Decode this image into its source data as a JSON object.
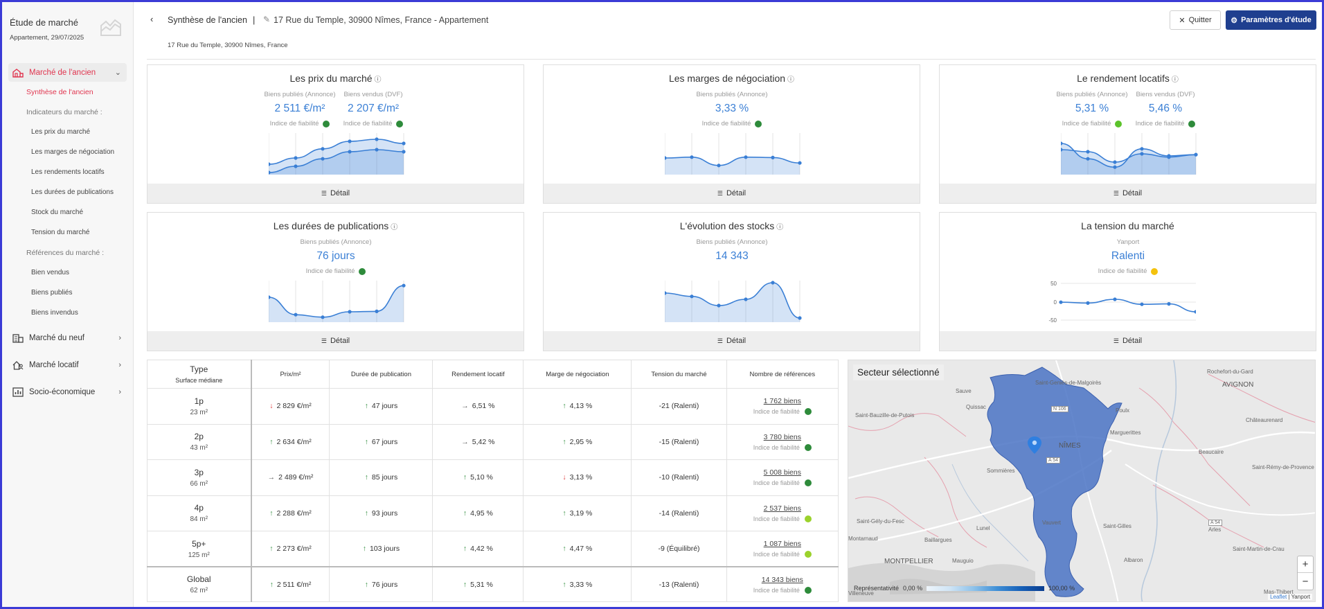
{
  "sidebar": {
    "title": "Étude de marché",
    "subtitle": "Appartement, 29/07/2025",
    "sections": [
      {
        "label": "Marché de l'ancien",
        "icon": "building-old-icon",
        "items": [
          {
            "label": "Synthèse de l'ancien",
            "level": 1,
            "current": true
          },
          {
            "label": "Indicateurs du marché :",
            "level": 1,
            "group": true
          },
          {
            "label": "Les prix du marché",
            "level": 2
          },
          {
            "label": "Les marges de négociation",
            "level": 2
          },
          {
            "label": "Les rendements locatifs",
            "level": 2
          },
          {
            "label": "Les durées de publications",
            "level": 2
          },
          {
            "label": "Stock du marché",
            "level": 2
          },
          {
            "label": "Tension du marché",
            "level": 2
          },
          {
            "label": "Références du marché :",
            "level": 1,
            "group": true
          },
          {
            "label": "Bien vendus",
            "level": 2
          },
          {
            "label": "Biens publiés",
            "level": 2
          },
          {
            "label": "Biens invendus",
            "level": 2
          }
        ]
      },
      {
        "label": "Marché du neuf",
        "icon": "building-new-icon"
      },
      {
        "label": "Marché locatif",
        "icon": "house-person-icon"
      },
      {
        "label": "Socio-économique",
        "icon": "bar-chart-icon"
      }
    ]
  },
  "header": {
    "title": "Synthèse de l'ancien",
    "separator": "|",
    "address": "17 Rue du Temple, 30900 Nîmes, France - Appartement",
    "subaddress": "17 Rue du Temple, 30900 Nîmes, France",
    "quit_label": "Quitter",
    "params_label": "Paramètres d'étude"
  },
  "colors": {
    "accent": "#e0344e",
    "primary": "#1f3f8f",
    "value_blue": "#3a7fd5",
    "reliability_green": "#2e8b3b",
    "reliability_light_green": "#9bd22c",
    "reliability_yellow": "#f4c20d"
  },
  "cards": [
    {
      "title": "Les prix du marché",
      "info": "ⓘ",
      "metrics": [
        {
          "label": "Biens publiés (Annonce)",
          "value": "2 511 €/m²",
          "reliability": "Indice de fiabilité",
          "dot": "#2e8b3b"
        },
        {
          "label": "Biens vendus (DVF)",
          "value": "2 207 €/m²",
          "reliability": "Indice de fiabilité",
          "dot": "#2e8b3b"
        }
      ],
      "detail": "Détail"
    },
    {
      "title": "Les marges de négociation",
      "info": "ⓘ",
      "metrics": [
        {
          "label": "Biens publiés (Annonce)",
          "value": "3,33 %",
          "reliability": "Indice de fiabilité",
          "dot": "#2e8b3b"
        }
      ],
      "detail": "Détail"
    },
    {
      "title": "Le rendement locatifs",
      "info": "ⓘ",
      "metrics": [
        {
          "label": "Biens publiés (Annonce)",
          "value": "5,31 %",
          "reliability": "Indice de fiabilité",
          "dot": "#5cc32b"
        },
        {
          "label": "Biens vendus (DVF)",
          "value": "5,46 %",
          "reliability": "Indice de fiabilité",
          "dot": "#2e8b3b"
        }
      ],
      "detail": "Détail"
    },
    {
      "title": "Les durées de publications",
      "info": "ⓘ",
      "metrics": [
        {
          "label": "Biens publiés (Annonce)",
          "value": "76 jours",
          "reliability": "Indice de fiabilité",
          "dot": "#2e8b3b"
        }
      ],
      "detail": "Détail"
    },
    {
      "title": "L'évolution des stocks",
      "info": "ⓘ",
      "metrics": [
        {
          "label": "Biens publiés (Annonce)",
          "value": "14 343",
          "reliability": "",
          "dot": ""
        }
      ],
      "detail": "Détail"
    },
    {
      "title": "La tension du marché",
      "info": "",
      "metrics": [
        {
          "label": "Yanport",
          "value": "Ralenti",
          "reliability": "Indice de fiabilité",
          "dot": "#f4c20d"
        }
      ],
      "tension_ticks": [
        "50",
        "0",
        "-50"
      ],
      "detail": "Détail"
    }
  ],
  "sparklines": [
    {
      "series": [
        [
          0.25,
          0.4,
          0.62,
          0.8,
          0.85,
          0.75
        ],
        [
          0.05,
          0.2,
          0.38,
          0.55,
          0.6,
          0.55
        ]
      ]
    },
    {
      "series": [
        [
          0.4,
          0.42,
          0.22,
          0.42,
          0.41,
          0.28
        ]
      ]
    },
    {
      "series": [
        [
          0.75,
          0.38,
          0.18,
          0.62,
          0.45,
          0.48
        ],
        [
          0.6,
          0.55,
          0.3,
          0.5,
          0.42,
          0.48
        ]
      ]
    },
    {
      "series": [
        [
          0.6,
          0.18,
          0.12,
          0.25,
          0.26,
          0.88
        ]
      ]
    },
    {
      "series": [
        [
          0.7,
          0.62,
          0.4,
          0.55,
          0.95,
          0.1
        ]
      ]
    },
    {
      "series": [
        [
          0.48,
          0.46,
          0.55,
          0.43,
          0.44,
          0.25
        ]
      ]
    }
  ],
  "table": {
    "headers": {
      "type": "Type",
      "type_sub": "Surface médiane",
      "price": "Prix/m²",
      "duration": "Durée de publication",
      "yield": "Rendement locatif",
      "margin": "Marge de négociation",
      "tension": "Tension du marché",
      "refs": "Nombre de références"
    },
    "reliability_label": "Indice de fiabilité",
    "rows": [
      {
        "type": "1p",
        "surface": "23 m²",
        "price": "2 829 €/m²",
        "price_trend": "down",
        "duration": "47 jours",
        "duration_trend": "up",
        "yield": "6,51 %",
        "yield_trend": "flat",
        "margin": "4,13 %",
        "margin_trend": "up",
        "tension": "-21 (Ralenti)",
        "refs": "1 762 biens",
        "dot": "#2e8b3b"
      },
      {
        "type": "2p",
        "surface": "43 m²",
        "price": "2 634 €/m²",
        "price_trend": "up",
        "duration": "67 jours",
        "duration_trend": "up",
        "yield": "5,42 %",
        "yield_trend": "flat",
        "margin": "2,95 %",
        "margin_trend": "up",
        "tension": "-15 (Ralenti)",
        "refs": "3 780 biens",
        "dot": "#2e8b3b"
      },
      {
        "type": "3p",
        "surface": "66 m²",
        "price": "2 489 €/m²",
        "price_trend": "flat",
        "duration": "85 jours",
        "duration_trend": "up",
        "yield": "5,10 %",
        "yield_trend": "up",
        "margin": "3,13 %",
        "margin_trend": "down",
        "tension": "-10 (Ralenti)",
        "refs": "5 008 biens",
        "dot": "#2e8b3b"
      },
      {
        "type": "4p",
        "surface": "84 m²",
        "price": "2 288 €/m²",
        "price_trend": "up",
        "duration": "93 jours",
        "duration_trend": "up",
        "yield": "4,95 %",
        "yield_trend": "up",
        "margin": "3,19 %",
        "margin_trend": "up",
        "tension": "-14 (Ralenti)",
        "refs": "2 537 biens",
        "dot": "#9bd22c"
      },
      {
        "type": "5p+",
        "surface": "125 m²",
        "price": "2 273 €/m²",
        "price_trend": "up",
        "duration": "103 jours",
        "duration_trend": "up",
        "yield": "4,42 %",
        "yield_trend": "up",
        "margin": "4,47 %",
        "margin_trend": "up",
        "tension": "-9 (Équilibré)",
        "refs": "1 087 biens",
        "dot": "#9bd22c"
      },
      {
        "type": "Global",
        "surface": "62 m²",
        "price": "2 511 €/m²",
        "price_trend": "up",
        "duration": "76 jours",
        "duration_trend": "up",
        "yield": "5,31 %",
        "yield_trend": "up",
        "margin": "3,33 %",
        "margin_trend": "up",
        "tension": "-13 (Ralenti)",
        "refs": "14 343 biens",
        "dot": "#2e8b3b"
      }
    ]
  },
  "map": {
    "title": "Secteur sélectionné",
    "labels": [
      "Rochefort-du-Gard",
      "AVIGNON",
      "Châteaurenard",
      "Saint-Geniès-de-Malgoirès",
      "Sauve",
      "Quissac",
      "Saint-Bauzille-de-Putois",
      "NÎMES",
      "Marguerittes",
      "Beaucaire",
      "Saint-Rémy-de-Provence",
      "Sommières",
      "Saint-Gély-du-Fesc",
      "Lunel",
      "Vauvert",
      "Saint-Gilles",
      "Arles",
      "Baillargues",
      "Montarnaud",
      "MONTPELLIER",
      "Mauguio",
      "Albaron",
      "Saint-Martin-de-Crau",
      "Mas-Thibert",
      "Poulx",
      "Villeneuve"
    ],
    "roads": [
      "N 106",
      "A 54",
      "A 54"
    ],
    "legend_label": "Représentativité",
    "legend_min": "0,00 %",
    "legend_max": "100,00 %",
    "zoom_in": "+",
    "zoom_out": "−",
    "attribution_link": "Leaflet",
    "attribution_sep": " | ",
    "attribution_text": "Yanport"
  }
}
